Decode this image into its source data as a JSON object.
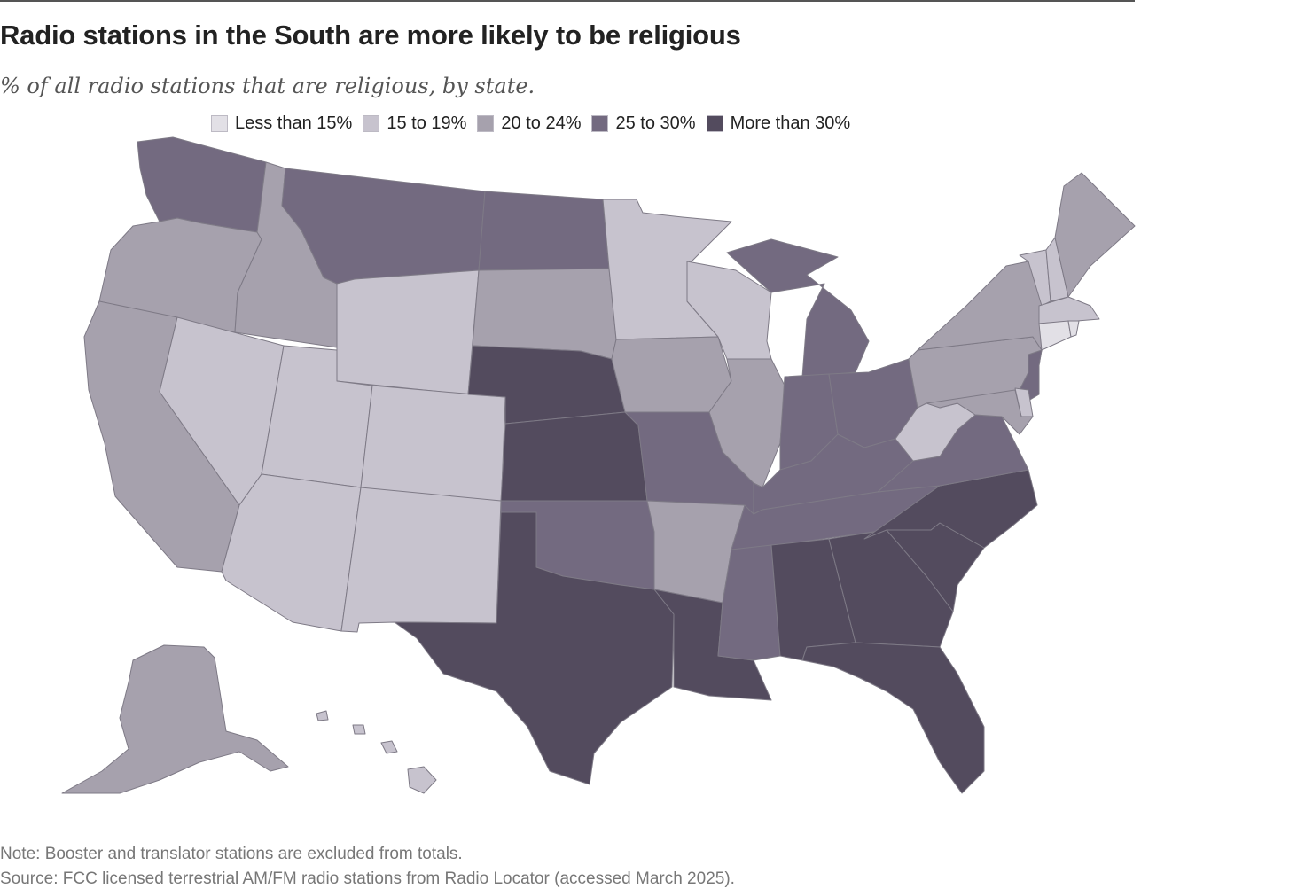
{
  "header": {
    "title": "Radio stations in the South are more likely to be religious",
    "subtitle": "% of all radio stations that are religious, by state."
  },
  "legend": {
    "items": [
      {
        "label": "Less than 15%",
        "color": "#e2e0e6"
      },
      {
        "label": "15 to 19%",
        "color": "#c7c3ce"
      },
      {
        "label": "20 to 24%",
        "color": "#a6a1ad"
      },
      {
        "label": "25 to 30%",
        "color": "#736a80"
      },
      {
        "label": "More than 30%",
        "color": "#534b5e"
      }
    ]
  },
  "map": {
    "state_categories": {
      "WA": 3,
      "OR": 2,
      "CA": 2,
      "ID": 2,
      "MT": 3,
      "WY": 1,
      "NV": 1,
      "UT": 1,
      "AZ": 1,
      "CO": 1,
      "NM": 1,
      "ND": 3,
      "SD": 2,
      "NE": 4,
      "KS": 4,
      "OK": 3,
      "TX": 4,
      "MN": 1,
      "IA": 2,
      "MO": 3,
      "AR": 2,
      "LA": 4,
      "WI": 1,
      "IL": 2,
      "MI": 3,
      "IN": 3,
      "OH": 3,
      "KY": 3,
      "TN": 3,
      "MS": 3,
      "AL": 4,
      "GA": 4,
      "FL": 4,
      "SC": 4,
      "NC": 4,
      "VA": 3,
      "WV": 1,
      "PA": 2,
      "NY": 2,
      "VT": 1,
      "NH": 1,
      "ME": 2,
      "MA": 1,
      "CT": 0,
      "RI": 0,
      "NJ": 3,
      "DE": 1,
      "MD": 2,
      "AK": 2,
      "HI": 1
    }
  },
  "footer": {
    "note": "Note: Booster and translator stations are excluded from totals.",
    "source": "Source: FCC licensed terrestrial AM/FM radio stations from Radio Locator (accessed March 2025)."
  }
}
